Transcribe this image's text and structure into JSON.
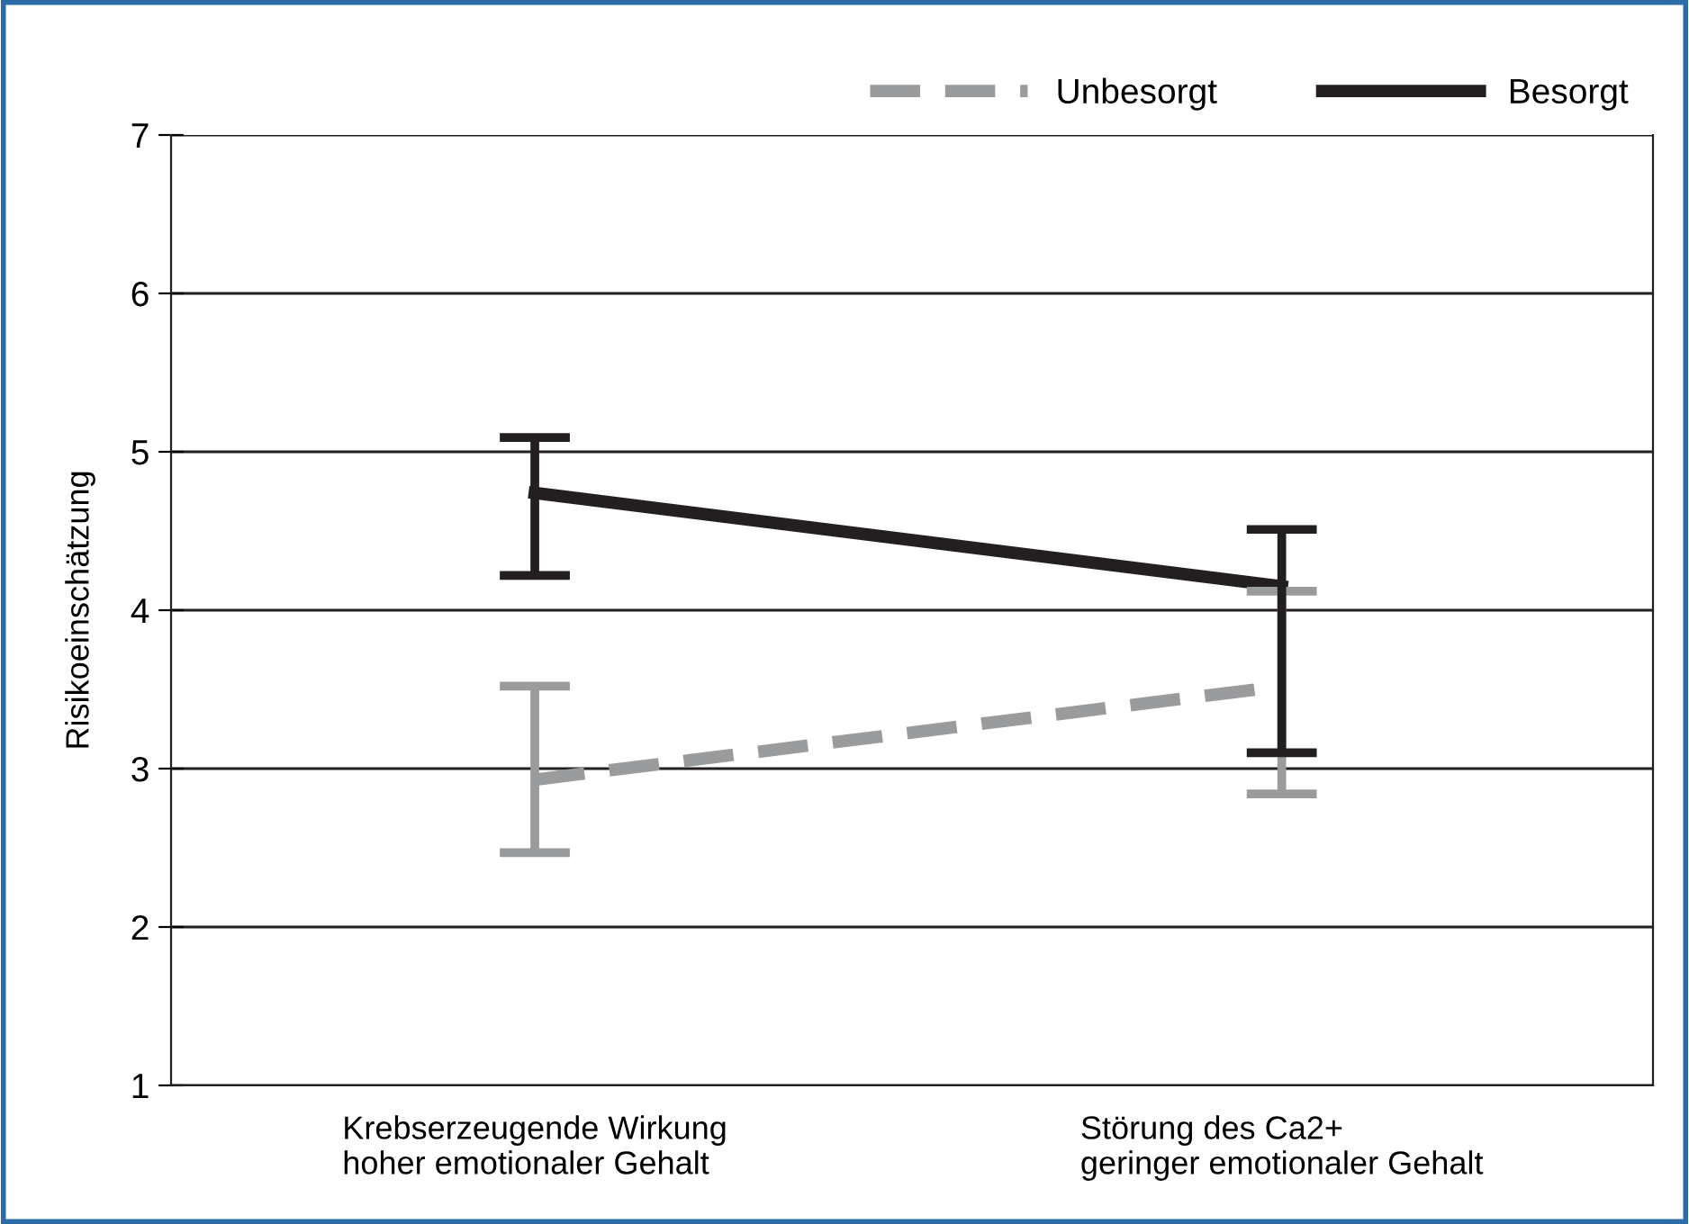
{
  "chart_data": {
    "type": "line",
    "ylabel": "Risikoeinschätzung",
    "categories": [
      "Krebserzeugende Wirkung\nhoher emotionaler Gehalt",
      "Störung des Ca2+\ngeringer emotionaler Gehalt"
    ],
    "series": [
      {
        "name": "Unbesorgt",
        "color": "#9a9b9d",
        "values": [
          2.93,
          3.52
        ],
        "errors": [
          [
            2.47,
            3.52
          ],
          [
            2.84,
            4.12
          ]
        ],
        "line_style": "dashed"
      },
      {
        "name": "Besorgt",
        "color": "#231f20",
        "values": [
          4.74,
          4.15
        ],
        "errors": [
          [
            4.22,
            5.09
          ],
          [
            3.1,
            4.51
          ]
        ],
        "line_style": "solid"
      }
    ],
    "ylim": [
      1,
      7
    ],
    "yticks": [
      1,
      2,
      3,
      4,
      5,
      6,
      7
    ],
    "grid": "y",
    "legend": "top",
    "marker": "none"
  }
}
